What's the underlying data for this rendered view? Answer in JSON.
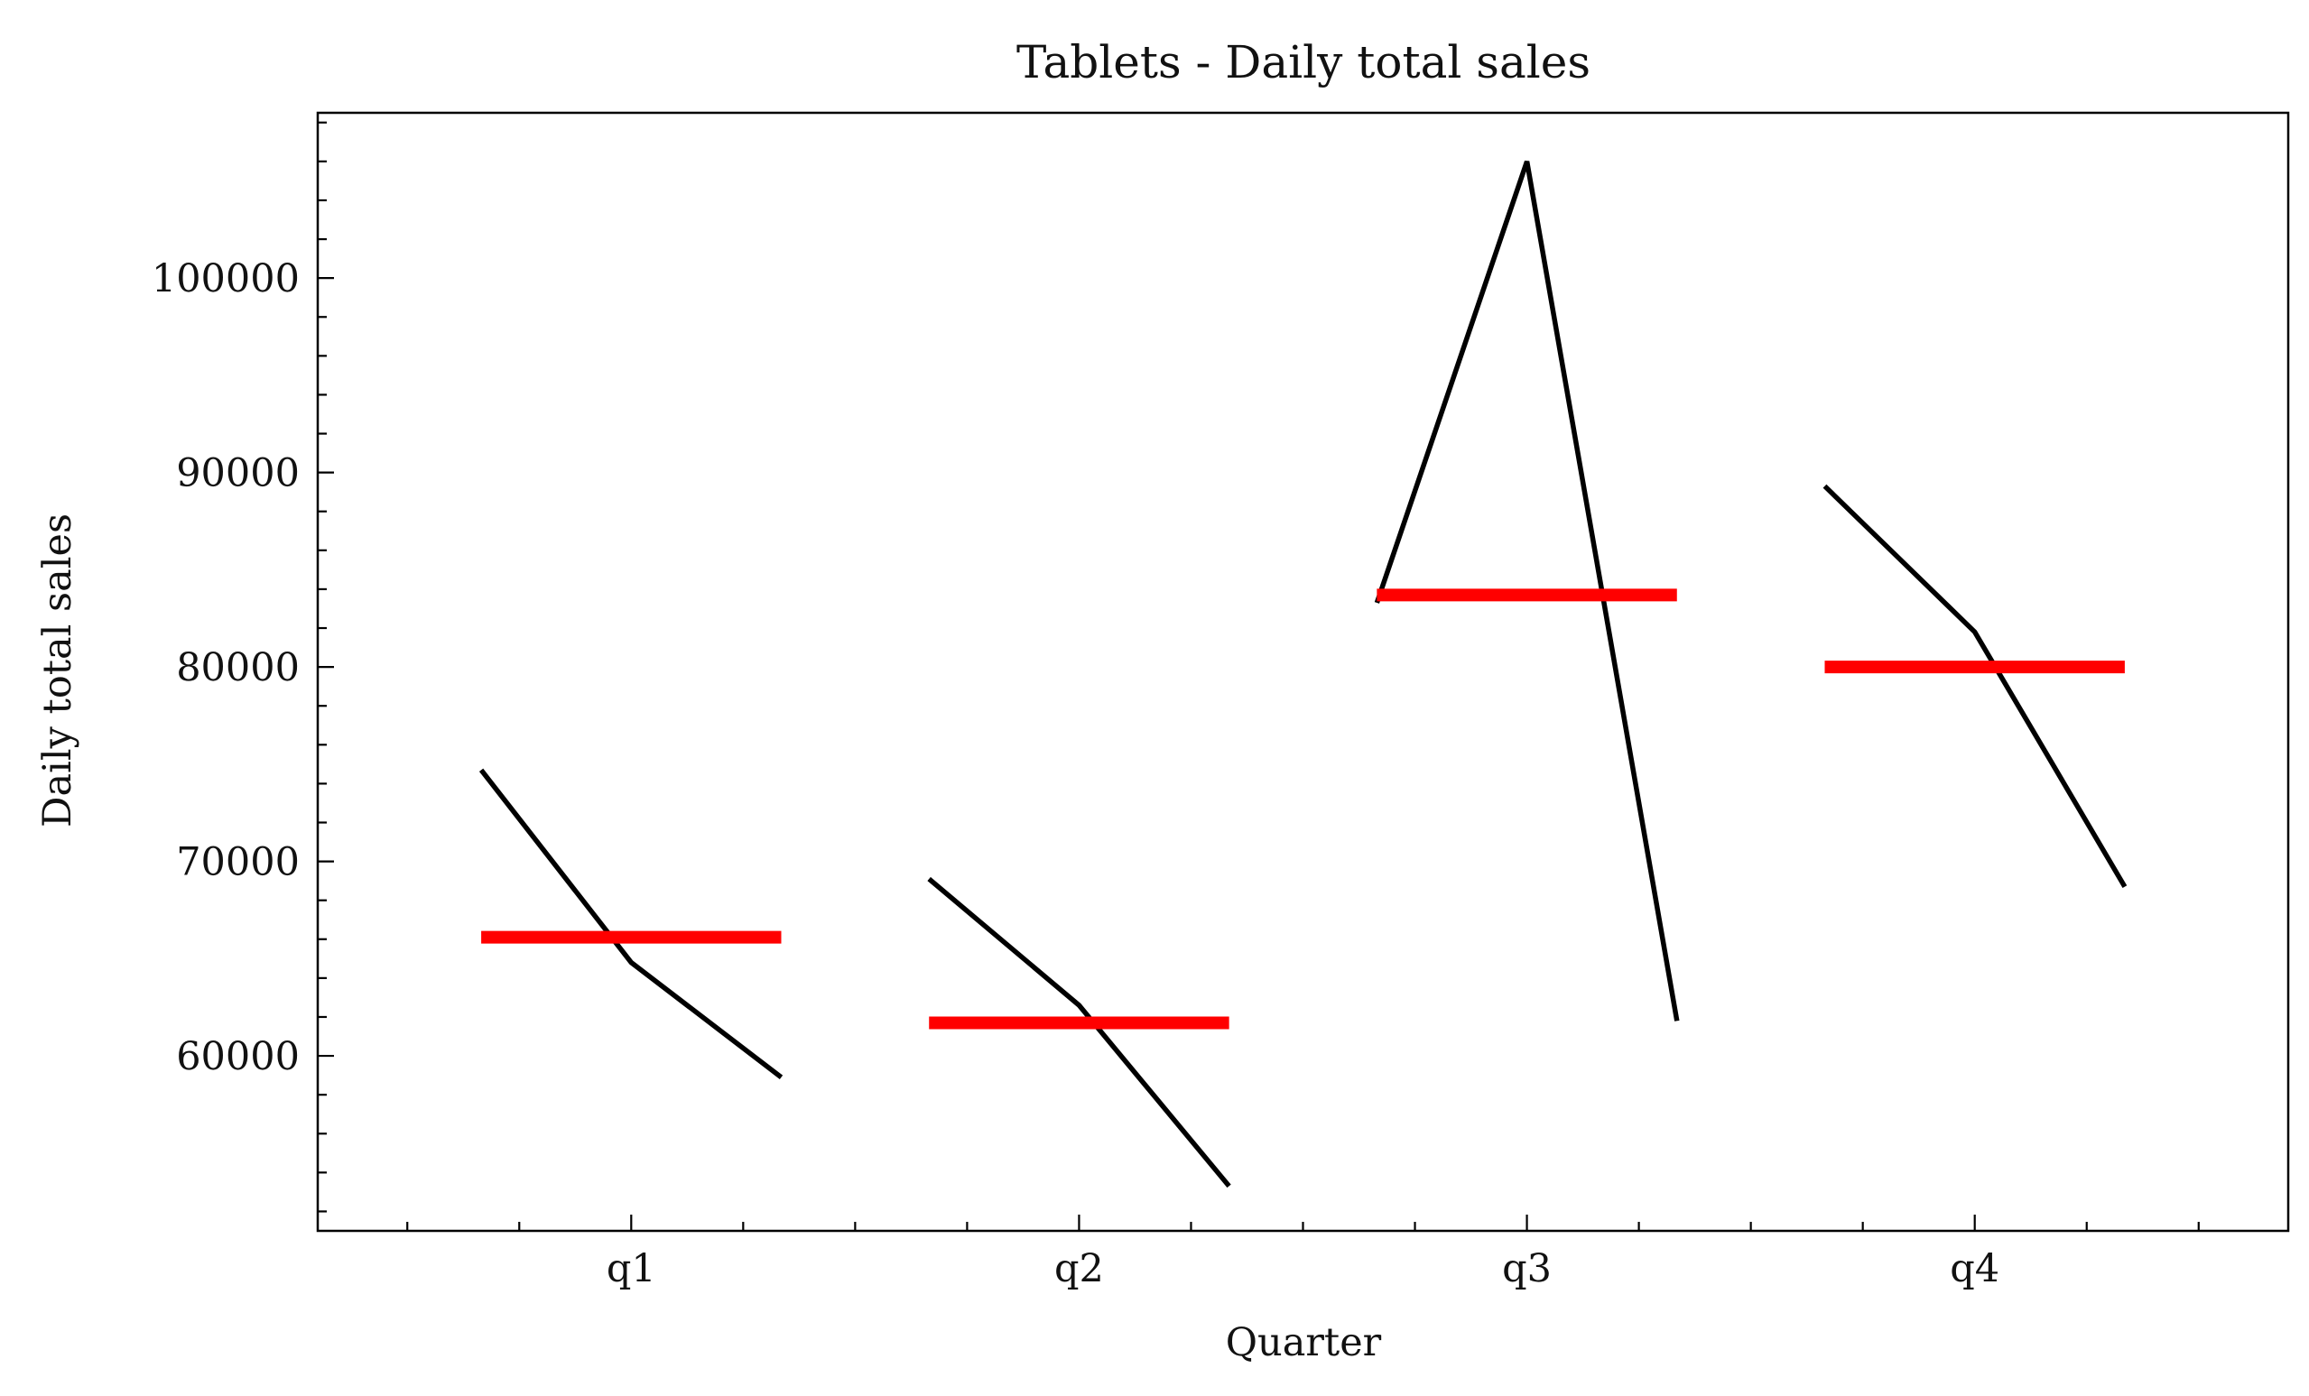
{
  "chart_data": {
    "type": "line",
    "title": "Tablets - Daily total sales",
    "xlabel": "Quarter",
    "ylabel": "Daily total sales",
    "categories": [
      "q1",
      "q2",
      "q3",
      "q4"
    ],
    "xlim": [
      0.3,
      4.7
    ],
    "ylim": [
      51000,
      108500
    ],
    "yticks": [
      60000,
      70000,
      80000,
      90000,
      100000
    ],
    "yticks_labels": [
      "60000",
      "70000",
      "80000",
      "90000",
      "100000"
    ],
    "y_minor_step": 2000,
    "x_minor_step": 0.25,
    "grid": false,
    "series": [
      {
        "quarter": "q1",
        "color": "#000000",
        "points": [
          [
            0.665,
            74700
          ],
          [
            1.0,
            64800
          ],
          [
            1.335,
            58900
          ]
        ],
        "mean": 66100,
        "mean_color": "#ff0000"
      },
      {
        "quarter": "q2",
        "color": "#000000",
        "points": [
          [
            1.665,
            69100
          ],
          [
            2.0,
            62600
          ],
          [
            2.335,
            53300
          ]
        ],
        "mean": 61700,
        "mean_color": "#ff0000"
      },
      {
        "quarter": "q3",
        "color": "#000000",
        "points": [
          [
            2.665,
            83300
          ],
          [
            3.0,
            106000
          ],
          [
            3.335,
            61800
          ]
        ],
        "mean": 83700,
        "mean_color": "#ff0000"
      },
      {
        "quarter": "q4",
        "color": "#000000",
        "points": [
          [
            3.665,
            89300
          ],
          [
            4.0,
            81800
          ],
          [
            4.335,
            68700
          ]
        ],
        "mean": 80000,
        "mean_color": "#ff0000"
      }
    ]
  }
}
